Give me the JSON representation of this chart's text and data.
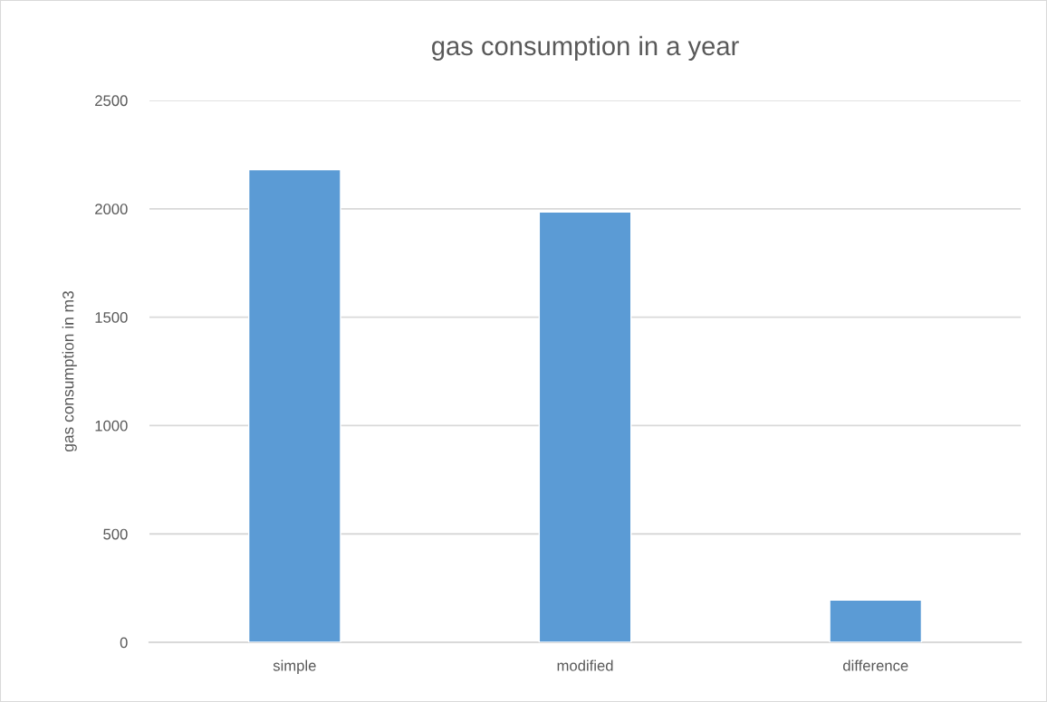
{
  "chart_data": {
    "type": "bar",
    "title": "gas consumption in a year",
    "ylabel": "gas consumption in m3",
    "categories": [
      "simple",
      "modified",
      "difference"
    ],
    "values": [
      2180,
      1985,
      195
    ],
    "color": "#5b9bd5",
    "ylim": [
      0,
      2500
    ],
    "yticks": [
      0,
      500,
      1000,
      1500,
      2000,
      2500
    ],
    "grid": "y",
    "legend": false
  }
}
